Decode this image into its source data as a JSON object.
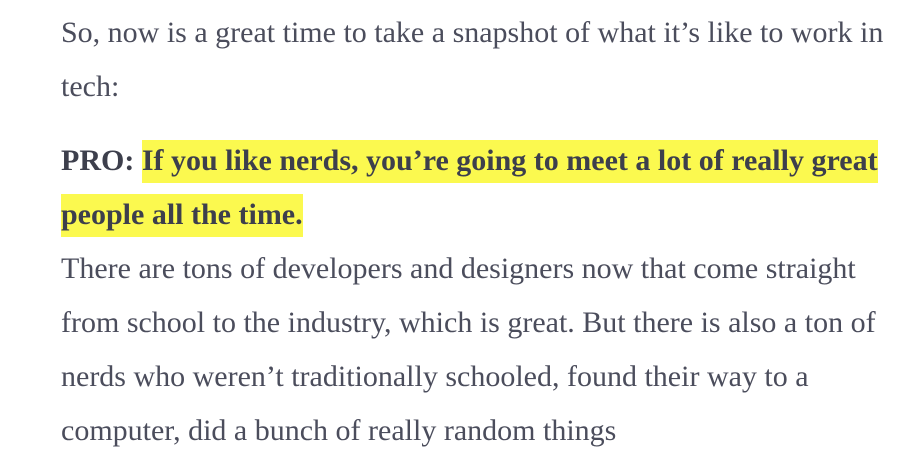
{
  "article": {
    "intro": "So, now is a great time to take a snapshot of what it’s like to work in tech:",
    "pro": {
      "label": "PRO: ",
      "highlight": "If you like nerds, you’re going to meet a lot of really great people all the time.",
      "highlight_color": "#fbf94f"
    },
    "body": "There are tons of developers and designers now that come straight from school to the industry, which is great. But there is also a ton of nerds who weren’t traditionally schooled, found their way to a computer, did a bunch of really random things"
  }
}
